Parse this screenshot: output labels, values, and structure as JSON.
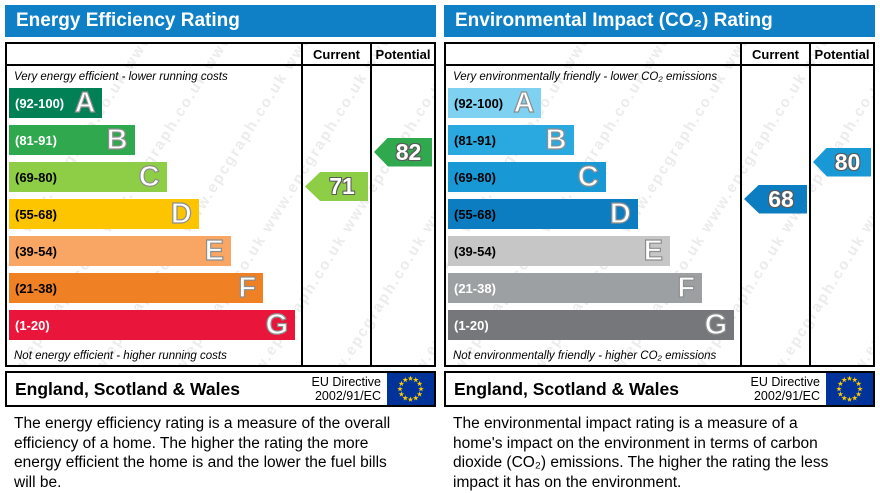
{
  "watermark": {
    "text": "www.epcgraph.co.uk"
  },
  "flag": {
    "bg_color": "#003399",
    "star_color": "#ffcc00"
  },
  "colors": {
    "header_bg": "#0f80c6"
  },
  "chart_data": [
    {
      "type": "bar",
      "title": "Energy Efficiency Rating",
      "columns": {
        "current": "Current",
        "potential": "Potential"
      },
      "top_caption": "Very energy efficient - lower running costs",
      "bottom_caption": "Not energy efficient - higher running costs",
      "bands": [
        {
          "letter": "A",
          "range_label": "(92-100)",
          "low": 92,
          "high": 100,
          "color": "#008054",
          "label_color": "#ffffff",
          "width_pct": 32
        },
        {
          "letter": "B",
          "range_label": "(81-91)",
          "low": 81,
          "high": 91,
          "color": "#2fa84e",
          "label_color": "#ffffff",
          "width_pct": 43
        },
        {
          "letter": "C",
          "range_label": "(69-80)",
          "low": 69,
          "high": 80,
          "color": "#8dce46",
          "label_color": "#000000",
          "width_pct": 54
        },
        {
          "letter": "D",
          "range_label": "(55-68)",
          "low": 55,
          "high": 68,
          "color": "#fdc400",
          "label_color": "#000000",
          "width_pct": 65
        },
        {
          "letter": "E",
          "range_label": "(39-54)",
          "low": 39,
          "high": 54,
          "color": "#f9a664",
          "label_color": "#000000",
          "width_pct": 76
        },
        {
          "letter": "F",
          "range_label": "(21-38)",
          "low": 21,
          "high": 38,
          "color": "#ef8023",
          "label_color": "#000000",
          "width_pct": 87
        },
        {
          "letter": "G",
          "range_label": "(1-20)",
          "low": 1,
          "high": 20,
          "color": "#e9153b",
          "label_color": "#ffffff",
          "width_pct": 98
        }
      ],
      "current": {
        "value": 71,
        "color": "#8dce46"
      },
      "potential": {
        "value": 82,
        "color": "#2fa84e"
      },
      "footer": {
        "region": "England, Scotland & Wales",
        "directive": [
          "EU Directive",
          "2002/91/EC"
        ]
      },
      "description": "The energy efficiency rating is a measure of the overall efficiency of a home. The higher the rating the more energy efficient the home is and the lower the fuel bills will be."
    },
    {
      "type": "bar",
      "title": "Environmental Impact (CO₂) Rating",
      "columns": {
        "current": "Current",
        "potential": "Potential"
      },
      "top_caption": "Very environmentally friendly - lower CO₂ emissions",
      "bottom_caption": "Not environmentally friendly - higher CO₂ emissions",
      "bands": [
        {
          "letter": "A",
          "range_label": "(92-100)",
          "low": 92,
          "high": 100,
          "color": "#7fd1f1",
          "label_color": "#000000",
          "width_pct": 32
        },
        {
          "letter": "B",
          "range_label": "(81-91)",
          "low": 81,
          "high": 91,
          "color": "#29a9e0",
          "label_color": "#000000",
          "width_pct": 43
        },
        {
          "letter": "C",
          "range_label": "(69-80)",
          "low": 69,
          "high": 80,
          "color": "#1899d6",
          "label_color": "#000000",
          "width_pct": 54
        },
        {
          "letter": "D",
          "range_label": "(55-68)",
          "low": 55,
          "high": 68,
          "color": "#0d7dc1",
          "label_color": "#000000",
          "width_pct": 65
        },
        {
          "letter": "E",
          "range_label": "(39-54)",
          "low": 39,
          "high": 54,
          "color": "#c6c6c6",
          "label_color": "#000000",
          "width_pct": 76
        },
        {
          "letter": "F",
          "range_label": "(21-38)",
          "low": 21,
          "high": 38,
          "color": "#9da0a3",
          "label_color": "#ffffff",
          "width_pct": 87
        },
        {
          "letter": "G",
          "range_label": "(1-20)",
          "low": 1,
          "high": 20,
          "color": "#76777a",
          "label_color": "#ffffff",
          "width_pct": 98
        }
      ],
      "current": {
        "value": 68,
        "color": "#0d7dc1"
      },
      "potential": {
        "value": 80,
        "color": "#1899d6"
      },
      "footer": {
        "region": "England, Scotland & Wales",
        "directive": [
          "EU Directive",
          "2002/91/EC"
        ]
      },
      "description": "The environmental impact rating is a measure of a home's impact on the environment in terms of carbon dioxide (CO₂) emissions. The higher the rating the less impact it has on the environment."
    }
  ]
}
